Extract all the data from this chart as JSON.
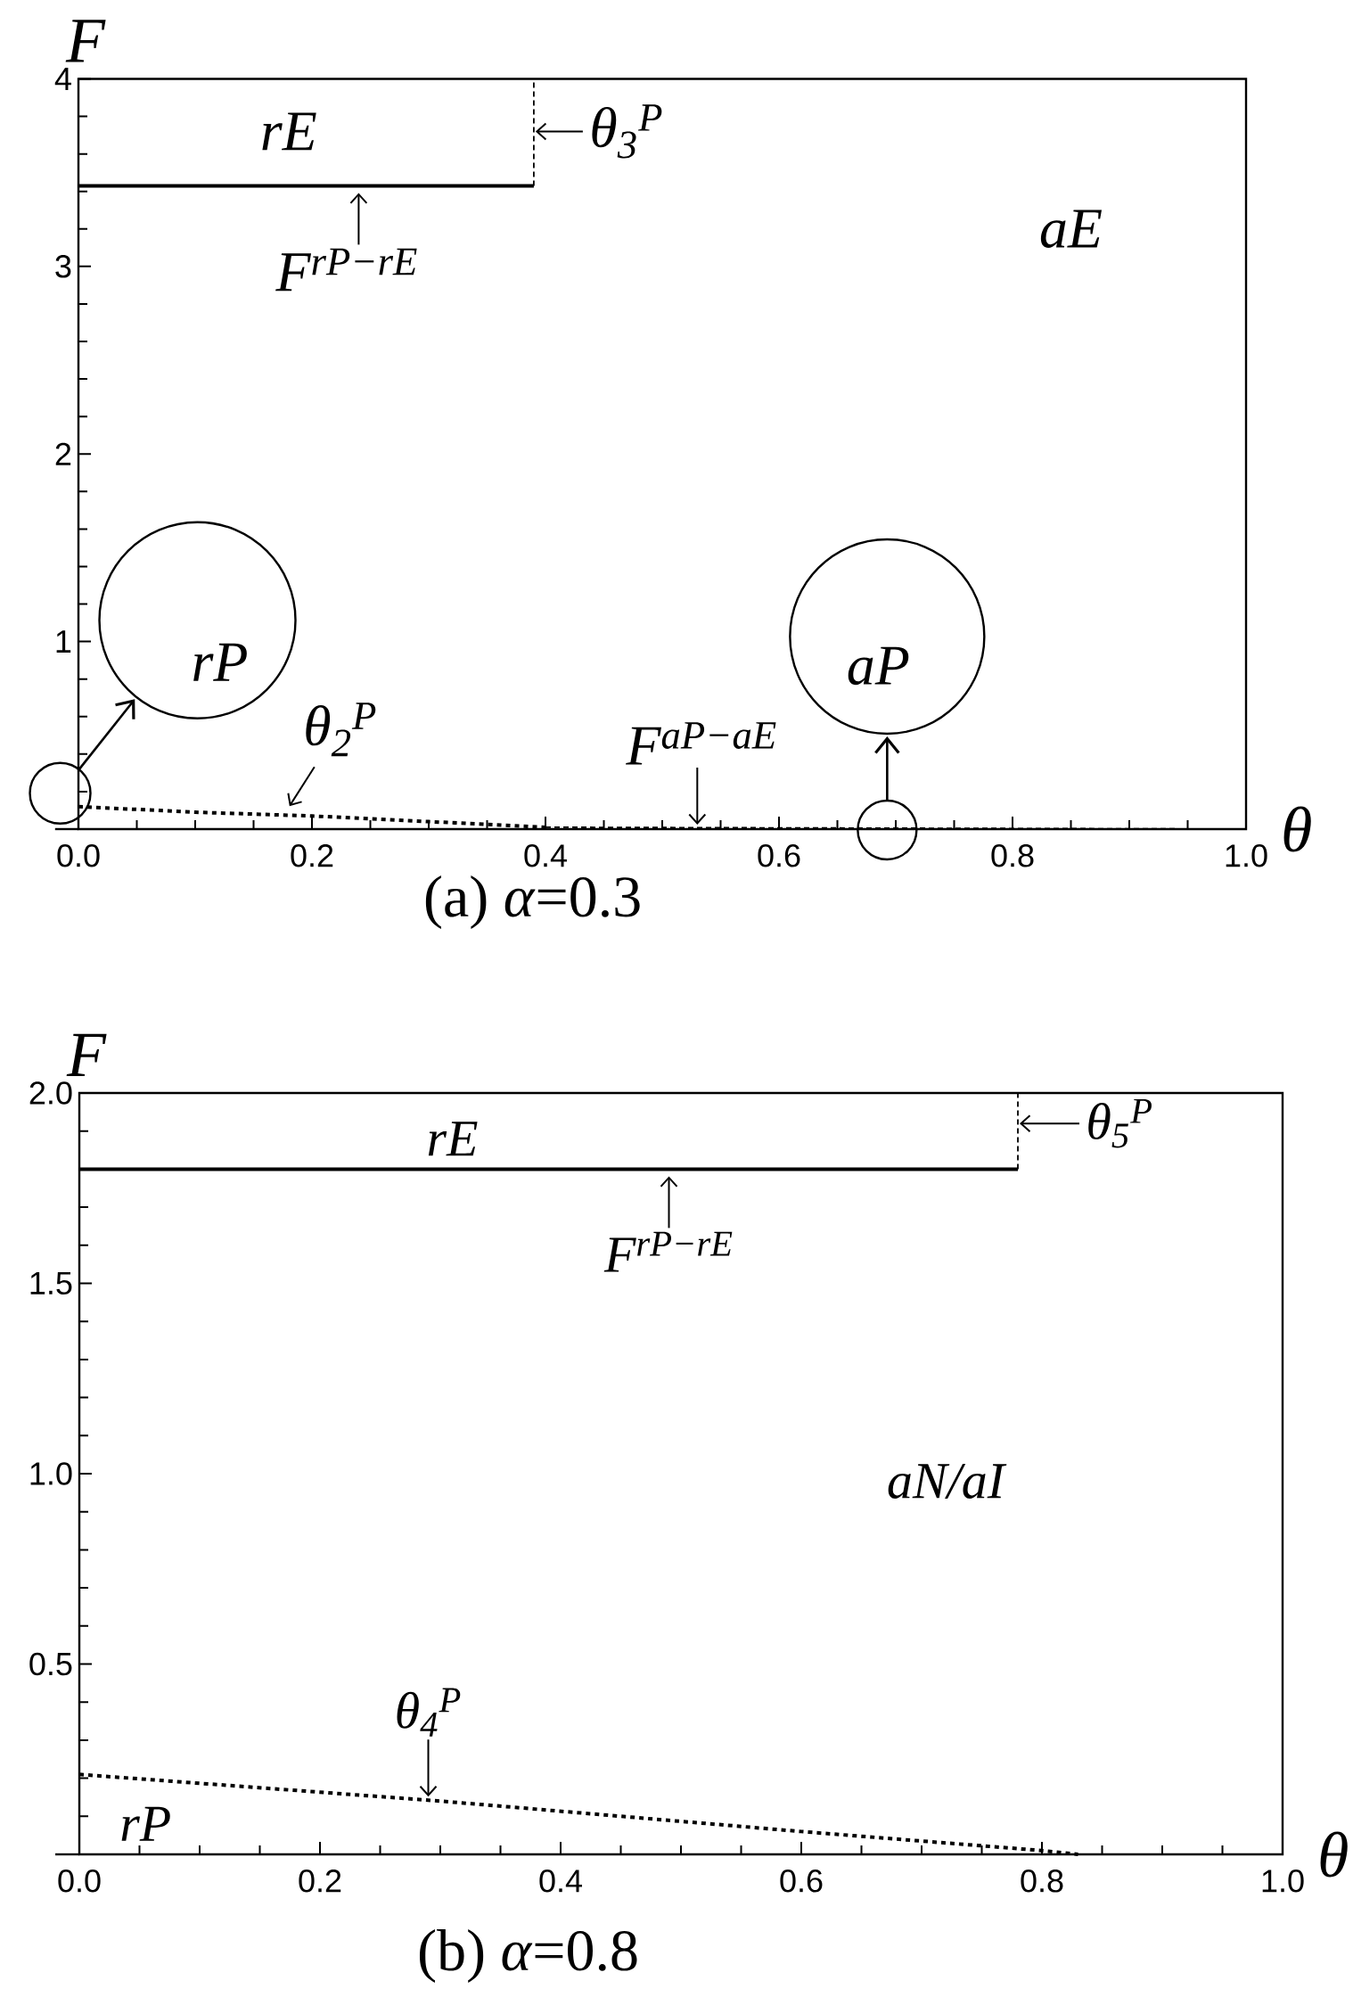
{
  "chart_data": [
    {
      "type": "line",
      "title": "(a) *α*=0.3",
      "xlabel": "θ",
      "ylabel": "F",
      "xlim": [
        0,
        1
      ],
      "ylim": [
        0,
        4
      ],
      "xticks": [
        {
          "value": 0,
          "label": "0.0"
        },
        {
          "value": 0.05,
          "label": null
        },
        {
          "value": 0.1,
          "label": null
        },
        {
          "value": 0.15,
          "label": null
        },
        0.2,
        {
          "value": 0.25,
          "label": null
        },
        {
          "value": 0.3,
          "label": null
        },
        {
          "value": 0.35,
          "label": null
        },
        0.4,
        {
          "value": 0.45,
          "label": null
        },
        {
          "value": 0.5,
          "label": null
        },
        {
          "value": 0.55,
          "label": null
        },
        0.6,
        {
          "value": 0.65,
          "label": null
        },
        {
          "value": 0.7,
          "label": null
        },
        {
          "value": 0.75,
          "label": null
        },
        0.8,
        {
          "value": 0.85,
          "label": null
        },
        {
          "value": 0.9,
          "label": null
        },
        {
          "value": 0.95,
          "label": null
        },
        {
          "value": 1,
          "label": "1.0"
        }
      ],
      "yticks": [
        {
          "value": 0.2,
          "label": null
        },
        {
          "value": 0.4,
          "label": null
        },
        {
          "value": 0.6,
          "label": null
        },
        {
          "value": 0.8,
          "label": null
        },
        1,
        {
          "value": 1.2,
          "label": null
        },
        {
          "value": 1.4,
          "label": null
        },
        {
          "value": 1.6,
          "label": null
        },
        {
          "value": 1.8,
          "label": null
        },
        2,
        {
          "value": 2.2,
          "label": null
        },
        {
          "value": 2.4,
          "label": null
        },
        {
          "value": 2.6,
          "label": null
        },
        {
          "value": 2.8,
          "label": null
        },
        3,
        {
          "value": 3.2,
          "label": null
        },
        {
          "value": 3.4,
          "label": null
        },
        {
          "value": 3.6,
          "label": null
        },
        {
          "value": 3.8,
          "label": null
        },
        4
      ],
      "series": [
        {
          "x": [
            0,
            0.39
          ],
          "values": [
            3.43,
            3.43
          ],
          "color": "#000000",
          "line_style": "solid"
        },
        {
          "x": [
            0.39,
            0.39
          ],
          "values": [
            3.43,
            4
          ],
          "color": "#000000",
          "line_style": "dashed"
        },
        {
          "x": [
            0,
            0.1,
            0.2,
            0.3,
            0.4
          ],
          "values": [
            0.12,
            0.09,
            0.07,
            0.04,
            0.01
          ],
          "color": "#000000",
          "line_style": "dotted"
        },
        {
          "x": [
            0.4,
            1
          ],
          "values": [
            0.01,
            0
          ],
          "color": "#000000",
          "line_style": "dashed"
        }
      ],
      "annotations": [
        "rE",
        "aE",
        {
          "text": "F$^{rP−rE}$",
          "x": 0.24,
          "y": 3.43
        },
        {
          "text": "θ$_{3}$$^{P}$",
          "x": 0.39,
          "y": 3.72
        },
        {
          "text": "θ$_{2}$$^{P}$",
          "x": 0.18,
          "y": 0.07
        },
        {
          "text": "F$^{aP−aE}$",
          "x": 0.53,
          "y": 0
        },
        "rP",
        "aP"
      ]
    },
    {
      "type": "line",
      "title": "(b) *α*=0.8",
      "xlabel": "θ",
      "ylabel": "F",
      "xlim": [
        0,
        1
      ],
      "ylim": [
        0,
        2
      ],
      "xticks": [
        {
          "value": 0,
          "label": "0.0"
        },
        {
          "value": 0.05,
          "label": null
        },
        {
          "value": 0.1,
          "label": null
        },
        {
          "value": 0.15,
          "label": null
        },
        0.2,
        {
          "value": 0.25,
          "label": null
        },
        {
          "value": 0.3,
          "label": null
        },
        {
          "value": 0.35,
          "label": null
        },
        0.4,
        {
          "value": 0.45,
          "label": null
        },
        {
          "value": 0.5,
          "label": null
        },
        {
          "value": 0.55,
          "label": null
        },
        0.6,
        {
          "value": 0.65,
          "label": null
        },
        {
          "value": 0.7,
          "label": null
        },
        {
          "value": 0.75,
          "label": null
        },
        0.8,
        {
          "value": 0.85,
          "label": null
        },
        {
          "value": 0.9,
          "label": null
        },
        {
          "value": 0.95,
          "label": null
        },
        {
          "value": 1,
          "label": "1.0"
        }
      ],
      "yticks": [
        {
          "value": 0.1,
          "label": null
        },
        {
          "value": 0.2,
          "label": null
        },
        {
          "value": 0.3,
          "label": null
        },
        {
          "value": 0.4,
          "label": null
        },
        0.5,
        {
          "value": 0.6,
          "label": null
        },
        {
          "value": 0.7,
          "label": null
        },
        {
          "value": 0.8,
          "label": null
        },
        {
          "value": 0.9,
          "label": null
        },
        {
          "value": 1,
          "label": "1.0"
        },
        {
          "value": 1.1,
          "label": null
        },
        {
          "value": 1.2,
          "label": null
        },
        {
          "value": 1.3,
          "label": null
        },
        {
          "value": 1.4,
          "label": null
        },
        1.5,
        {
          "value": 1.6,
          "label": null
        },
        {
          "value": 1.7,
          "label": null
        },
        {
          "value": 1.8,
          "label": null
        },
        {
          "value": 1.9,
          "label": null
        },
        {
          "value": 2,
          "label": "2.0"
        }
      ],
      "series": [
        {
          "x": [
            0,
            0.78
          ],
          "values": [
            1.8,
            1.8
          ],
          "color": "#000000",
          "line_style": "solid"
        },
        {
          "x": [
            0.78,
            0.78
          ],
          "values": [
            1.8,
            2
          ],
          "color": "#000000",
          "line_style": "dashed"
        },
        {
          "x": [
            0,
            0.3,
            0.6,
            0.8,
            0.83
          ],
          "values": [
            0.21,
            0.14,
            0.06,
            0.01,
            0
          ],
          "color": "#000000",
          "line_style": "dotted"
        }
      ],
      "annotations": [
        "rE",
        {
          "text": "θ$_{5}$$^{P}$",
          "x": 0.78,
          "y": 1.92
        },
        {
          "text": "F$^{rP−rE}$",
          "x": 0.49,
          "y": 1.8
        },
        "aN/aI",
        {
          "text": "θ$_{4}$$^{P}$",
          "x": 0.29,
          "y": 0.14
        },
        "rP"
      ]
    }
  ]
}
